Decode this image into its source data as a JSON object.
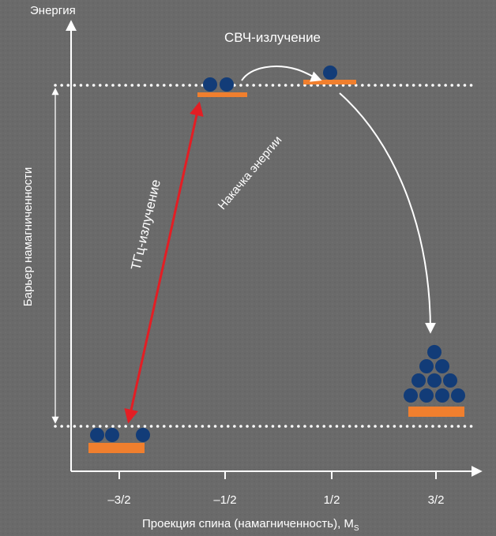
{
  "y_axis_label": "Энергия",
  "x_axis_label": "Проекция спина (намагниченность), M",
  "x_axis_label_subscript": "S",
  "barrier_label": "Барьер намагниченности",
  "microwave_label": "СВЧ-излучение",
  "thz_label": "ТГц-излучение",
  "pumping_label": "Накачка энергии",
  "ticks": [
    "–3/2",
    "–1/2",
    "1/2",
    "3/2"
  ],
  "colors": {
    "background": "#6b6b6b",
    "level_bar": "#f07f2e",
    "particle": "#123c78",
    "thz_arrow": "#e31e24",
    "lines": "#ffffff"
  }
}
